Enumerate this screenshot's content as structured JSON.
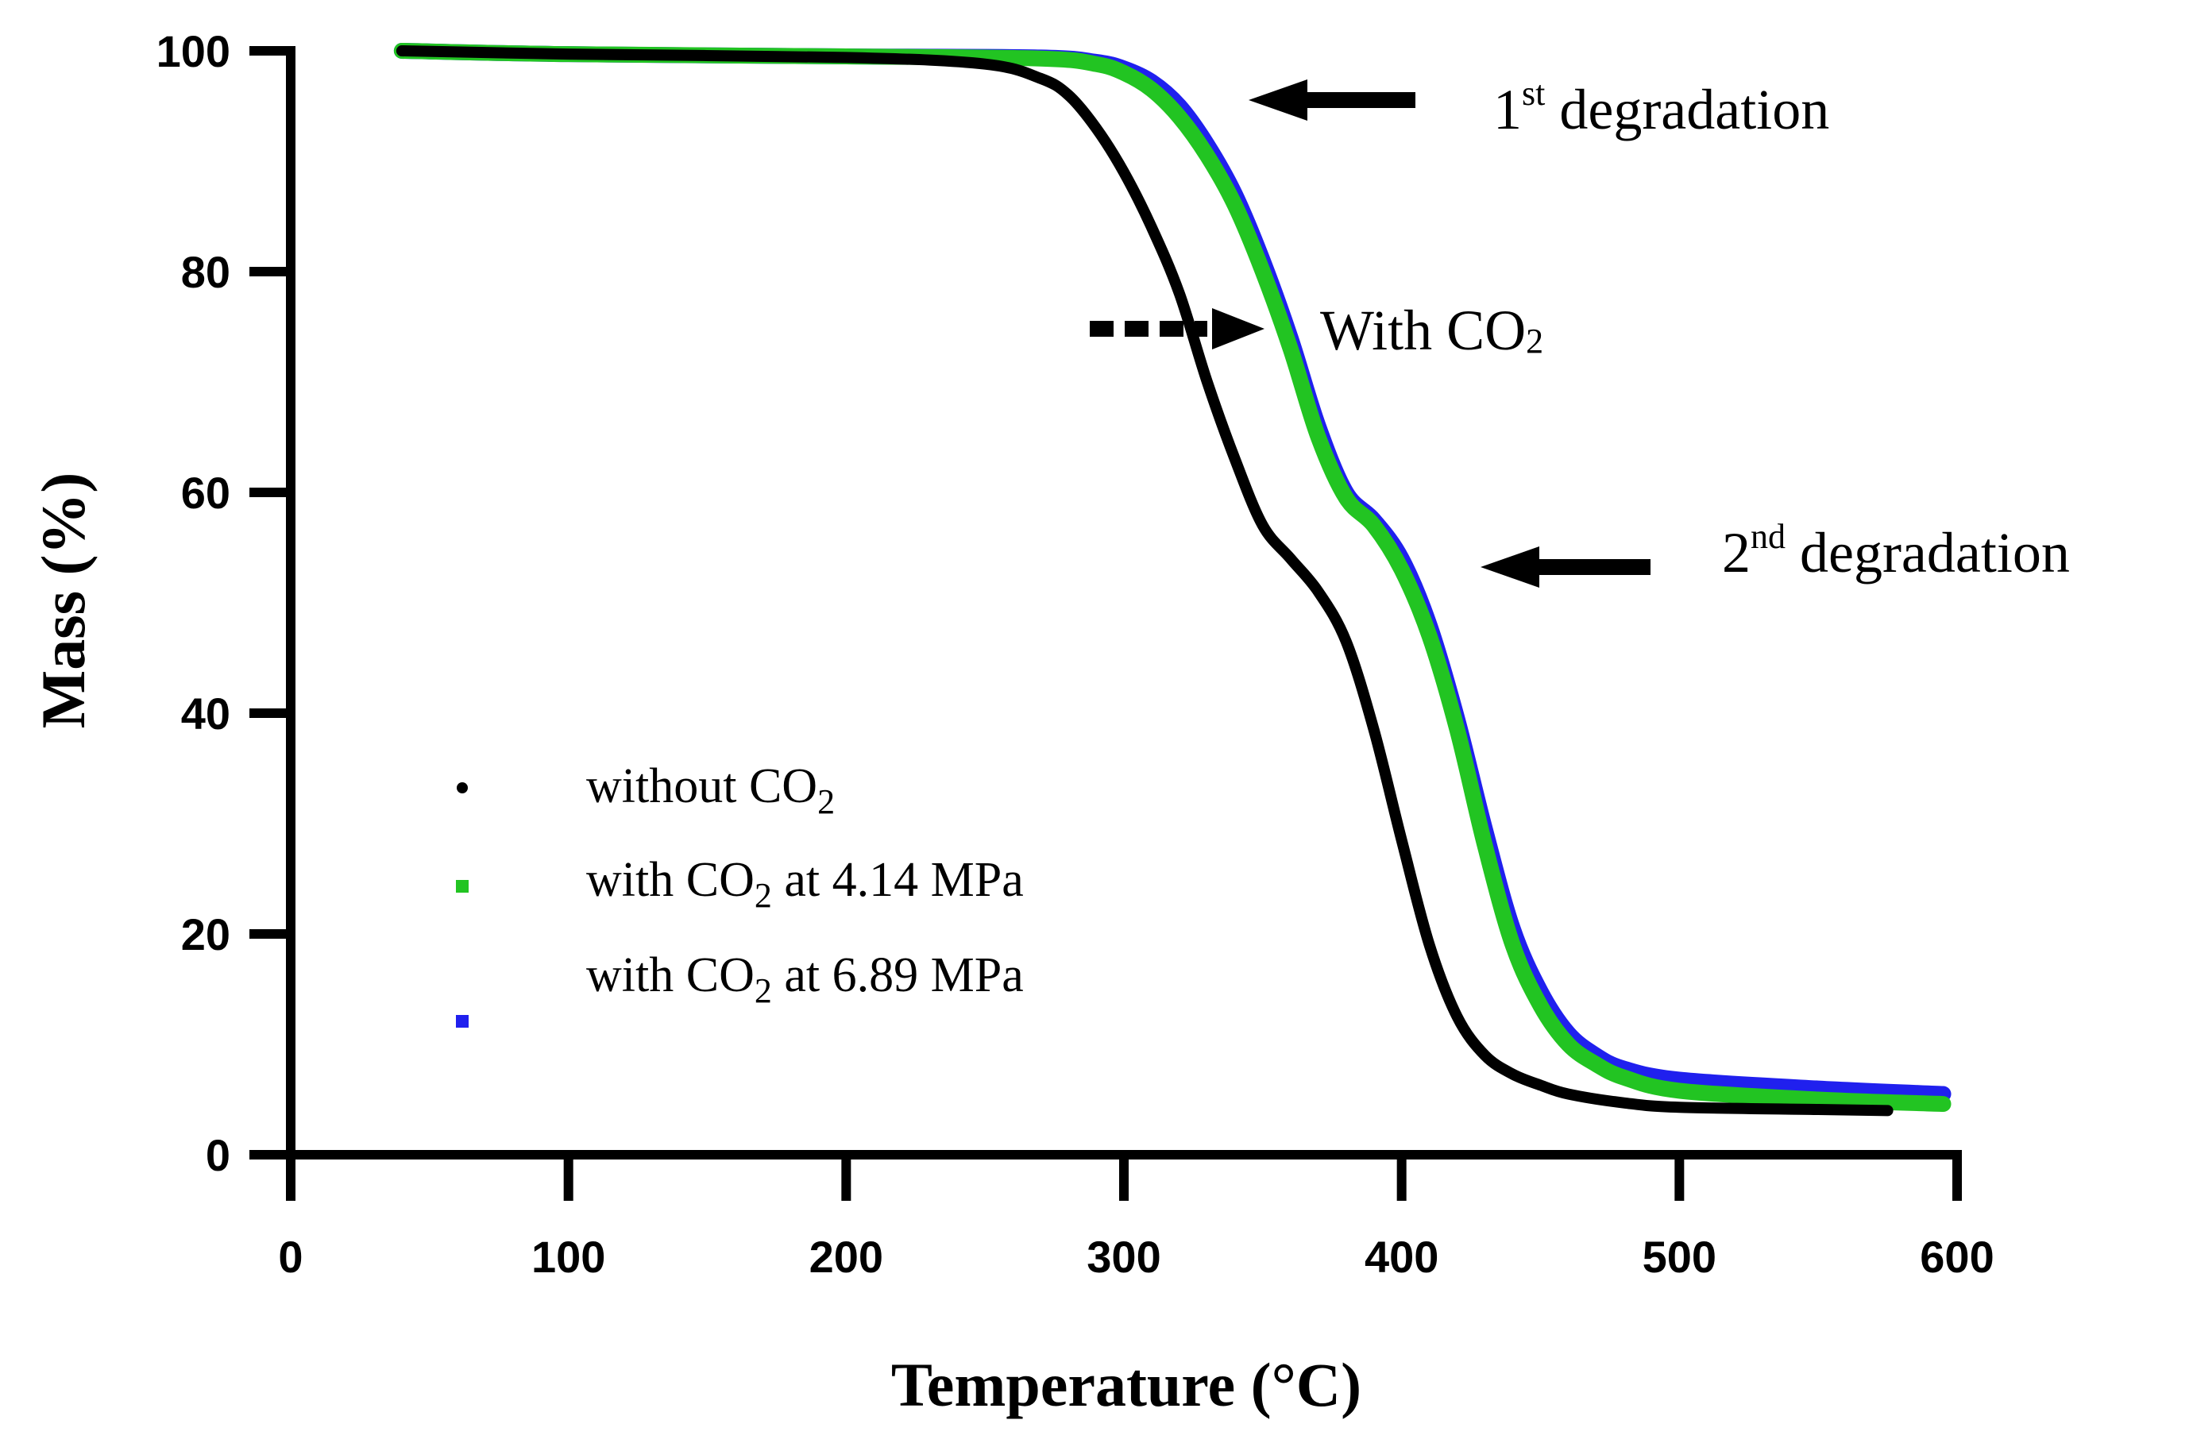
{
  "chart_data": {
    "type": "scatter",
    "title": "",
    "xlabel": "Temperature (°C)",
    "ylabel": "Mass (%)",
    "xlim": [
      0,
      600
    ],
    "ylim": [
      0,
      100
    ],
    "xticks": [
      0,
      100,
      200,
      300,
      400,
      500,
      600
    ],
    "yticks": [
      0,
      20,
      40,
      60,
      80,
      100
    ],
    "grid": false,
    "legend_position": "lower-left",
    "series": [
      {
        "name": "without CO2",
        "label_main": "without CO",
        "label_sub": "2",
        "label_tail": "",
        "color": "#000000",
        "x": [
          40,
          100,
          200,
          250,
          270,
          280,
          290,
          300,
          310,
          320,
          330,
          340,
          350,
          360,
          370,
          380,
          390,
          400,
          410,
          420,
          430,
          440,
          450,
          460,
          480,
          500,
          550,
          575
        ],
        "y": [
          100,
          99.7,
          99.4,
          98.8,
          97.5,
          96.0,
          93.0,
          89.0,
          84.0,
          78.0,
          70.0,
          63.0,
          57.0,
          54.0,
          51.0,
          46.5,
          38.5,
          28.5,
          19.0,
          12.5,
          9.0,
          7.3,
          6.3,
          5.5,
          4.7,
          4.3,
          4.1,
          4.0
        ]
      },
      {
        "name": "with CO2 at 4.14 MPa",
        "label_main": "with CO",
        "label_sub": "2",
        "label_tail": " at 4.14 MPa",
        "color": "#22c422",
        "x": [
          40,
          100,
          200,
          270,
          290,
          300,
          310,
          320,
          330,
          340,
          350,
          360,
          370,
          380,
          390,
          400,
          410,
          420,
          430,
          440,
          450,
          460,
          470,
          480,
          500,
          550,
          595
        ],
        "y": [
          100,
          99.7,
          99.5,
          99.3,
          98.8,
          98.0,
          96.5,
          94.0,
          90.5,
          86.0,
          80.0,
          73.0,
          65.0,
          59.5,
          57.0,
          53.0,
          47.0,
          38.5,
          28.0,
          19.0,
          13.5,
          10.0,
          8.2,
          7.0,
          5.8,
          5.0,
          4.6
        ]
      },
      {
        "name": "with CO2 at 6.89 MPa",
        "label_main": "with CO",
        "label_sub": "2",
        "label_tail": " at 6.89 MPa",
        "color": "#2020ee",
        "x": [
          40,
          100,
          200,
          270,
          290,
          300,
          310,
          320,
          330,
          340,
          350,
          360,
          370,
          380,
          390,
          400,
          410,
          420,
          430,
          440,
          450,
          460,
          470,
          480,
          500,
          550,
          595
        ],
        "y": [
          100,
          99.7,
          99.5,
          99.4,
          99.0,
          98.4,
          97.2,
          95.0,
          91.5,
          87.0,
          81.0,
          74.0,
          66.0,
          60.0,
          57.5,
          54.0,
          48.0,
          39.5,
          29.5,
          20.5,
          14.8,
          11.0,
          9.0,
          7.8,
          6.8,
          6.0,
          5.5
        ]
      }
    ],
    "annotations": [
      {
        "name": "first-degradation",
        "main": "1",
        "sup": "st",
        "tail": " degradation",
        "arrow_to": [
          346,
          96.5
        ],
        "style": "solid"
      },
      {
        "name": "with-co2-shift",
        "main": "With CO",
        "sub": "2",
        "arrow_from": [
          290,
          75
        ],
        "arrow_to": [
          346,
          75
        ],
        "style": "dashed"
      },
      {
        "name": "second-degradation",
        "main": "2",
        "sup": "nd",
        "tail": " degradation",
        "arrow_to": [
          430,
          53
        ],
        "style": "solid"
      }
    ]
  }
}
